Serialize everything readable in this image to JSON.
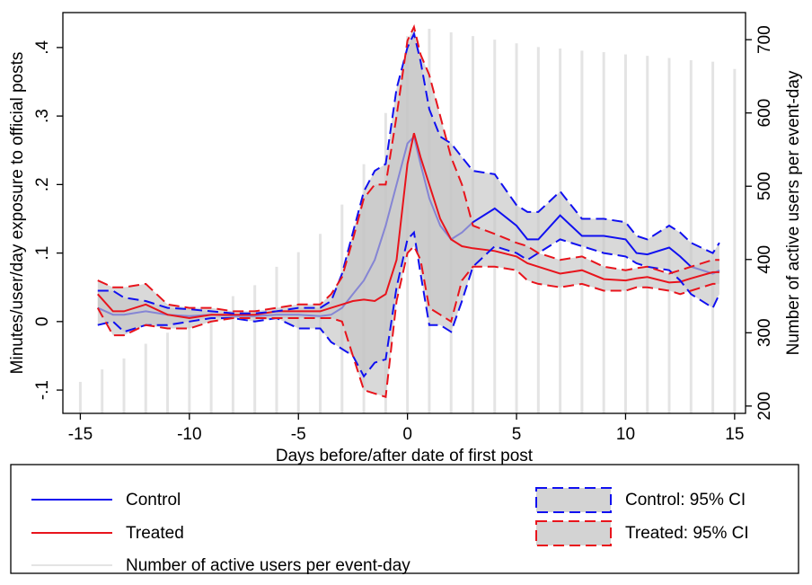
{
  "chart_data": {
    "type": "line",
    "xlabel": "Days before/after date of first post",
    "ylabel": "Minutes/user/day exposure to official posts",
    "y2label": "Number of active users per event-day",
    "xlim": [
      -15.8,
      15.5
    ],
    "xticks": [
      -15,
      -10,
      -5,
      0,
      5,
      10,
      15
    ],
    "ylim": [
      -0.134,
      0.451
    ],
    "yticks": [
      {
        "value": -0.1,
        "label": "-.1"
      },
      0,
      {
        "value": 0.1,
        "label": ".1"
      },
      {
        "value": 0.2,
        "label": ".2"
      },
      {
        "value": 0.3,
        "label": ".3"
      },
      {
        "value": 0.4,
        "label": ".4"
      }
    ],
    "y2lim": [
      190,
      737
    ],
    "y2ticks": [
      200,
      300,
      400,
      500,
      600,
      700
    ],
    "x": [
      -14.2,
      -13.5,
      -13,
      -12,
      -11,
      -10,
      -9,
      -8,
      -7,
      -6,
      -5,
      -4,
      -3.5,
      -3,
      -2.5,
      -2,
      -1.5,
      -1,
      -0.5,
      0,
      0.3,
      0.6,
      1,
      1.5,
      2,
      2.5,
      3,
      4,
      5,
      5.5,
      6,
      7,
      8,
      9,
      10,
      10.5,
      11,
      12,
      12.5,
      13,
      14,
      14.3
    ],
    "series": [
      {
        "name": "Control",
        "color": "#1010f0",
        "values": [
          0.02,
          0.01,
          0.01,
          0.015,
          0.01,
          0.008,
          0.01,
          0.008,
          0.008,
          0.01,
          0.01,
          0.008,
          0.01,
          0.02,
          0.04,
          0.06,
          0.09,
          0.14,
          0.2,
          0.26,
          0.27,
          0.23,
          0.18,
          0.14,
          0.12,
          0.13,
          0.145,
          0.165,
          0.14,
          0.12,
          0.12,
          0.155,
          0.125,
          0.125,
          0.12,
          0.1,
          0.098,
          0.108,
          0.095,
          0.08,
          0.07,
          0.075
        ]
      },
      {
        "name": "Treated",
        "color": "#e8141c",
        "values": [
          0.04,
          0.015,
          0.015,
          0.025,
          0.01,
          0.005,
          0.01,
          0.01,
          0.01,
          0.015,
          0.015,
          0.015,
          0.02,
          0.025,
          0.03,
          0.032,
          0.03,
          0.04,
          0.09,
          0.23,
          0.275,
          0.24,
          0.2,
          0.15,
          0.12,
          0.11,
          0.107,
          0.103,
          0.095,
          0.085,
          0.08,
          0.07,
          0.075,
          0.062,
          0.06,
          0.063,
          0.065,
          0.057,
          0.058,
          0.063,
          0.072,
          0.072
        ]
      },
      {
        "name": "Number of active users per event-day",
        "color": "#e4e4e4",
        "axis": "y2",
        "type": "bar",
        "x": [
          -15,
          -14,
          -13,
          -12,
          -11,
          -10,
          -9,
          -8,
          -7,
          -6,
          -5,
          -4,
          -3,
          -2,
          -1,
          0,
          1,
          2,
          3,
          4,
          5,
          6,
          7,
          8,
          9,
          10,
          11,
          12,
          13,
          14,
          15
        ],
        "values": [
          233,
          250,
          265,
          285,
          300,
          315,
          330,
          350,
          365,
          390,
          410,
          435,
          475,
          530,
          600,
          705,
          715,
          710,
          705,
          700,
          695,
          690,
          688,
          685,
          683,
          680,
          678,
          675,
          672,
          670,
          660
        ]
      }
    ],
    "ci": [
      {
        "name": "Control: 95% CI",
        "color": "#1010f0",
        "lower": [
          -0.005,
          0,
          -0.015,
          -0.005,
          -0.005,
          0,
          0.005,
          0.005,
          0,
          0.005,
          -0.01,
          -0.01,
          -0.03,
          -0.04,
          -0.05,
          -0.08,
          -0.06,
          -0.055,
          0.05,
          0.12,
          0.13,
          0.07,
          -0.005,
          -0.005,
          -0.015,
          0.03,
          0.08,
          0.11,
          0.1,
          0.09,
          0.1,
          0.12,
          0.11,
          0.1,
          0.095,
          0.085,
          0.08,
          0.075,
          0.06,
          0.04,
          0.02,
          0.04
        ],
        "upper": [
          0.045,
          0.045,
          0.035,
          0.03,
          0.02,
          0.018,
          0.015,
          0.012,
          0.012,
          0.015,
          0.02,
          0.02,
          0.03,
          0.07,
          0.13,
          0.19,
          0.22,
          0.23,
          0.34,
          0.4,
          0.42,
          0.38,
          0.31,
          0.27,
          0.26,
          0.24,
          0.22,
          0.215,
          0.17,
          0.16,
          0.16,
          0.19,
          0.15,
          0.15,
          0.145,
          0.125,
          0.12,
          0.14,
          0.13,
          0.115,
          0.1,
          0.115
        ]
      },
      {
        "name": "Treated: 95% CI",
        "color": "#e8141c",
        "lower": [
          0.02,
          -0.02,
          -0.02,
          -0.005,
          -0.01,
          -0.01,
          0,
          0.005,
          0.005,
          0.005,
          0.005,
          0.005,
          0.005,
          0,
          -0.05,
          -0.1,
          -0.105,
          -0.11,
          0.03,
          0.1,
          0.11,
          0.09,
          0.02,
          0.01,
          0,
          0.06,
          0.08,
          0.08,
          0.075,
          0.06,
          0.055,
          0.05,
          0.055,
          0.045,
          0.045,
          0.05,
          0.05,
          0.045,
          0.04,
          0.045,
          0.055,
          0.055
        ],
        "upper": [
          0.06,
          0.05,
          0.05,
          0.055,
          0.025,
          0.02,
          0.02,
          0.015,
          0.015,
          0.02,
          0.025,
          0.025,
          0.04,
          0.065,
          0.12,
          0.18,
          0.2,
          0.2,
          0.3,
          0.41,
          0.43,
          0.39,
          0.36,
          0.3,
          0.24,
          0.2,
          0.14,
          0.128,
          0.115,
          0.11,
          0.1,
          0.09,
          0.095,
          0.08,
          0.075,
          0.078,
          0.08,
          0.07,
          0.075,
          0.08,
          0.09,
          0.09
        ]
      }
    ]
  }
}
